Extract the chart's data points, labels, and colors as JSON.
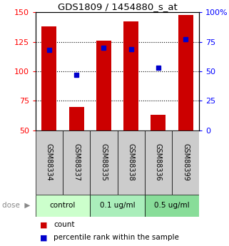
{
  "title": "GDS1809 / 1454880_s_at",
  "samples": [
    "GSM88334",
    "GSM88337",
    "GSM88335",
    "GSM88338",
    "GSM88336",
    "GSM88399"
  ],
  "counts": [
    138,
    70,
    126,
    142,
    63,
    148
  ],
  "percentiles": [
    68,
    47,
    70,
    69,
    53,
    77
  ],
  "y_min": 50,
  "y_max": 150,
  "y_ticks": [
    50,
    75,
    100,
    125,
    150
  ],
  "y_right_ticks": [
    0,
    25,
    50,
    75,
    100
  ],
  "y_right_labels": [
    "0",
    "25",
    "50",
    "75",
    "100%"
  ],
  "bar_color": "#cc0000",
  "dot_color": "#0000cc",
  "bar_width": 0.55,
  "dose_groups": [
    {
      "label": "control",
      "start": 0,
      "end": 2
    },
    {
      "label": "0.1 ug/ml",
      "start": 2,
      "end": 4
    },
    {
      "label": "0.5 ug/ml",
      "start": 4,
      "end": 6
    }
  ],
  "label_bg_color": "#cccccc",
  "dose_bg_colors": [
    "#ccffcc",
    "#aaeebb",
    "#88dd99"
  ],
  "grid_yticks": [
    75,
    100,
    125
  ]
}
